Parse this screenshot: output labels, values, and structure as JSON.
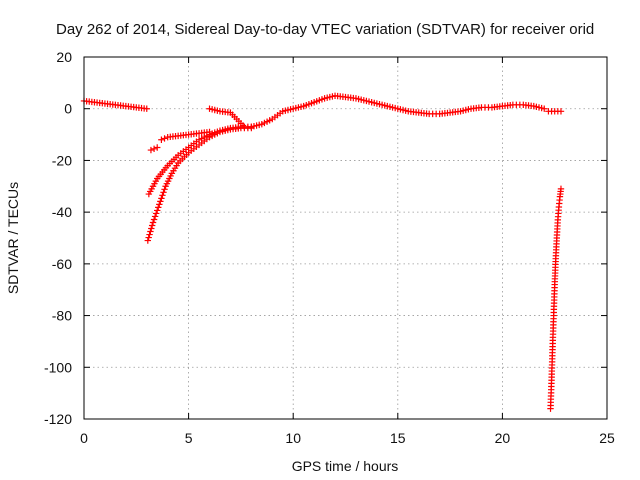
{
  "chart_data": {
    "type": "scatter",
    "title": "Day 262 of 2014, Sidereal Day-to-day VTEC variation (SDTVAR) for receiver orid",
    "xlabel": "GPS time / hours",
    "ylabel": "SDTVAR / TECUs",
    "xlim": [
      0,
      25
    ],
    "ylim": [
      -120,
      20
    ],
    "x_ticks": [
      0,
      5,
      10,
      15,
      20,
      25
    ],
    "y_ticks": [
      20,
      0,
      -20,
      -40,
      -60,
      -80,
      -100,
      -120
    ],
    "grid": true,
    "marker": "plus",
    "color": "#ff0000",
    "series": [
      {
        "name": "SDTVAR",
        "segments": [
          {
            "x": [
              0,
              0.5,
              1,
              1.5,
              2,
              2.5,
              3.0
            ],
            "y": [
              3,
              2.5,
              2,
              1.5,
              1,
              0.5,
              0
            ]
          },
          {
            "x": [
              3.05,
              3.3,
              3.6,
              3.9,
              4.2,
              4.5,
              5.0,
              5.5,
              6.0,
              6.5,
              7.0,
              7.5,
              8.0
            ],
            "y": [
              -51,
              -44,
              -37,
              -30,
              -25,
              -21,
              -17,
              -14,
              -11,
              -9,
              -8,
              -7.5,
              -7.5
            ]
          },
          {
            "x": [
              3.1,
              3.5,
              4.0,
              4.5,
              5.0,
              5.5,
              6.0,
              6.5,
              7.0,
              7.5,
              8.0
            ],
            "y": [
              -33,
              -27,
              -22,
              -18,
              -15,
              -12,
              -10,
              -8.5,
              -7.5,
              -7,
              -7
            ]
          },
          {
            "x": [
              3.2,
              3.5
            ],
            "y": [
              -16,
              -15
            ]
          },
          {
            "x": [
              3.7,
              4.0,
              4.5,
              5.0,
              5.5,
              6.0
            ],
            "y": [
              -12,
              -11,
              -10.5,
              -10,
              -9.5,
              -9
            ]
          },
          {
            "x": [
              6.0,
              6.5,
              7.0,
              7.3,
              7.6
            ],
            "y": [
              0,
              -1,
              -1.5,
              -4,
              -6.5
            ]
          },
          {
            "x": [
              8.0,
              8.5,
              9.0,
              9.5,
              10.0,
              10.5,
              11.0,
              11.5,
              12.0,
              12.5,
              13.0,
              13.5,
              14.0,
              14.5,
              15.0,
              15.5,
              16.0,
              16.5,
              17.0,
              17.5,
              18.0,
              18.5,
              19.0,
              19.5,
              20.0,
              20.5,
              21.0,
              21.5,
              22.0
            ],
            "y": [
              -7,
              -6,
              -4,
              -1,
              0,
              1,
              2.5,
              4,
              5,
              4.5,
              4,
              3,
              2,
              1,
              0,
              -1,
              -1.5,
              -2,
              -2,
              -1.5,
              -1,
              0,
              0.5,
              0.5,
              1,
              1.5,
              1.5,
              1,
              0
            ]
          },
          {
            "x": [
              22.2,
              22.5,
              22.8
            ],
            "y": [
              -1,
              -1,
              -1
            ]
          },
          {
            "x": [
              22.3,
              22.35,
              22.4,
              22.45,
              22.5,
              22.55,
              22.6,
              22.65,
              22.7,
              22.75,
              22.8
            ],
            "y": [
              -116,
              -105,
              -92,
              -80,
              -68,
              -58,
              -50,
              -43,
              -38,
              -34,
              -31
            ]
          }
        ]
      }
    ]
  }
}
